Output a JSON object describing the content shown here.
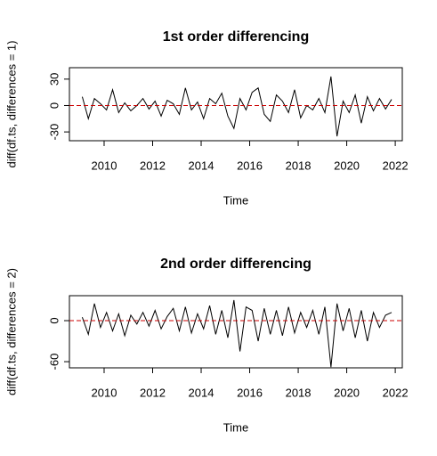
{
  "chart_data": [
    {
      "type": "line",
      "title": "1st order differencing",
      "xlabel": "Time",
      "ylabel": "diff(df.ts, differences = 1)",
      "x": [
        2009.1,
        2009.35,
        2009.6,
        2009.85,
        2010.1,
        2010.35,
        2010.6,
        2010.85,
        2011.1,
        2011.35,
        2011.6,
        2011.85,
        2012.1,
        2012.35,
        2012.6,
        2012.85,
        2013.1,
        2013.35,
        2013.6,
        2013.85,
        2014.1,
        2014.35,
        2014.6,
        2014.85,
        2015.1,
        2015.35,
        2015.6,
        2015.85,
        2016.1,
        2016.35,
        2016.6,
        2016.85,
        2017.1,
        2017.35,
        2017.6,
        2017.85,
        2018.1,
        2018.35,
        2018.6,
        2018.85,
        2019.1,
        2019.35,
        2019.6,
        2019.85,
        2020.1,
        2020.35,
        2020.6,
        2020.85,
        2021.1,
        2021.35,
        2021.6,
        2021.85
      ],
      "series": [
        {
          "color": "#000000",
          "values": [
            10,
            -15,
            8,
            2,
            -5,
            18,
            -8,
            3,
            -6,
            0,
            8,
            -4,
            5,
            -12,
            6,
            2,
            -10,
            20,
            -5,
            4,
            -15,
            8,
            2,
            14,
            -12,
            -26,
            8,
            -5,
            15,
            20,
            -10,
            -18,
            12,
            5,
            -8,
            18,
            -14,
            0,
            -5,
            8,
            -8,
            33,
            -35,
            5,
            -8,
            12,
            -20,
            10,
            -6,
            8,
            -4,
            7
          ]
        }
      ],
      "reference_line": {
        "value": 0,
        "color": "#cc0000"
      },
      "xlim": [
        2008.57,
        2022.29
      ],
      "xticks": [
        2010,
        2012,
        2014,
        2016,
        2018,
        2020,
        2022
      ],
      "ylim": [
        -40,
        43
      ],
      "yticks": [
        -30,
        0,
        30
      ]
    },
    {
      "type": "line",
      "title": "2nd order differencing",
      "xlabel": "Time",
      "ylabel": "diff(df.ts, differences = 2)",
      "x": [
        2009.1,
        2009.35,
        2009.6,
        2009.85,
        2010.1,
        2010.35,
        2010.6,
        2010.85,
        2011.1,
        2011.35,
        2011.6,
        2011.85,
        2012.1,
        2012.35,
        2012.6,
        2012.85,
        2013.1,
        2013.35,
        2013.6,
        2013.85,
        2014.1,
        2014.35,
        2014.6,
        2014.85,
        2015.1,
        2015.35,
        2015.6,
        2015.85,
        2016.1,
        2016.35,
        2016.6,
        2016.85,
        2017.1,
        2017.35,
        2017.6,
        2017.85,
        2018.1,
        2018.35,
        2018.6,
        2018.85,
        2019.1,
        2019.35,
        2019.6,
        2019.85,
        2020.1,
        2020.35,
        2020.6,
        2020.85,
        2021.1,
        2021.35,
        2021.6,
        2021.85
      ],
      "series": [
        {
          "color": "#000000",
          "values": [
            5,
            -20,
            25,
            -10,
            12,
            -15,
            10,
            -22,
            8,
            -5,
            12,
            -8,
            15,
            -12,
            6,
            18,
            -15,
            20,
            -18,
            10,
            -12,
            22,
            -20,
            15,
            -25,
            30,
            -45,
            20,
            15,
            -30,
            18,
            -20,
            15,
            -22,
            20,
            -18,
            12,
            -10,
            15,
            -20,
            20,
            -68,
            25,
            -15,
            18,
            -25,
            15,
            -30,
            12,
            -10,
            8,
            12
          ]
        }
      ],
      "reference_line": {
        "value": 0,
        "color": "#cc0000"
      },
      "xlim": [
        2008.57,
        2022.29
      ],
      "xticks": [
        2010,
        2012,
        2014,
        2016,
        2018,
        2020,
        2022
      ],
      "ylim": [
        -69,
        36.5
      ],
      "yticks": [
        -60,
        0
      ]
    }
  ]
}
